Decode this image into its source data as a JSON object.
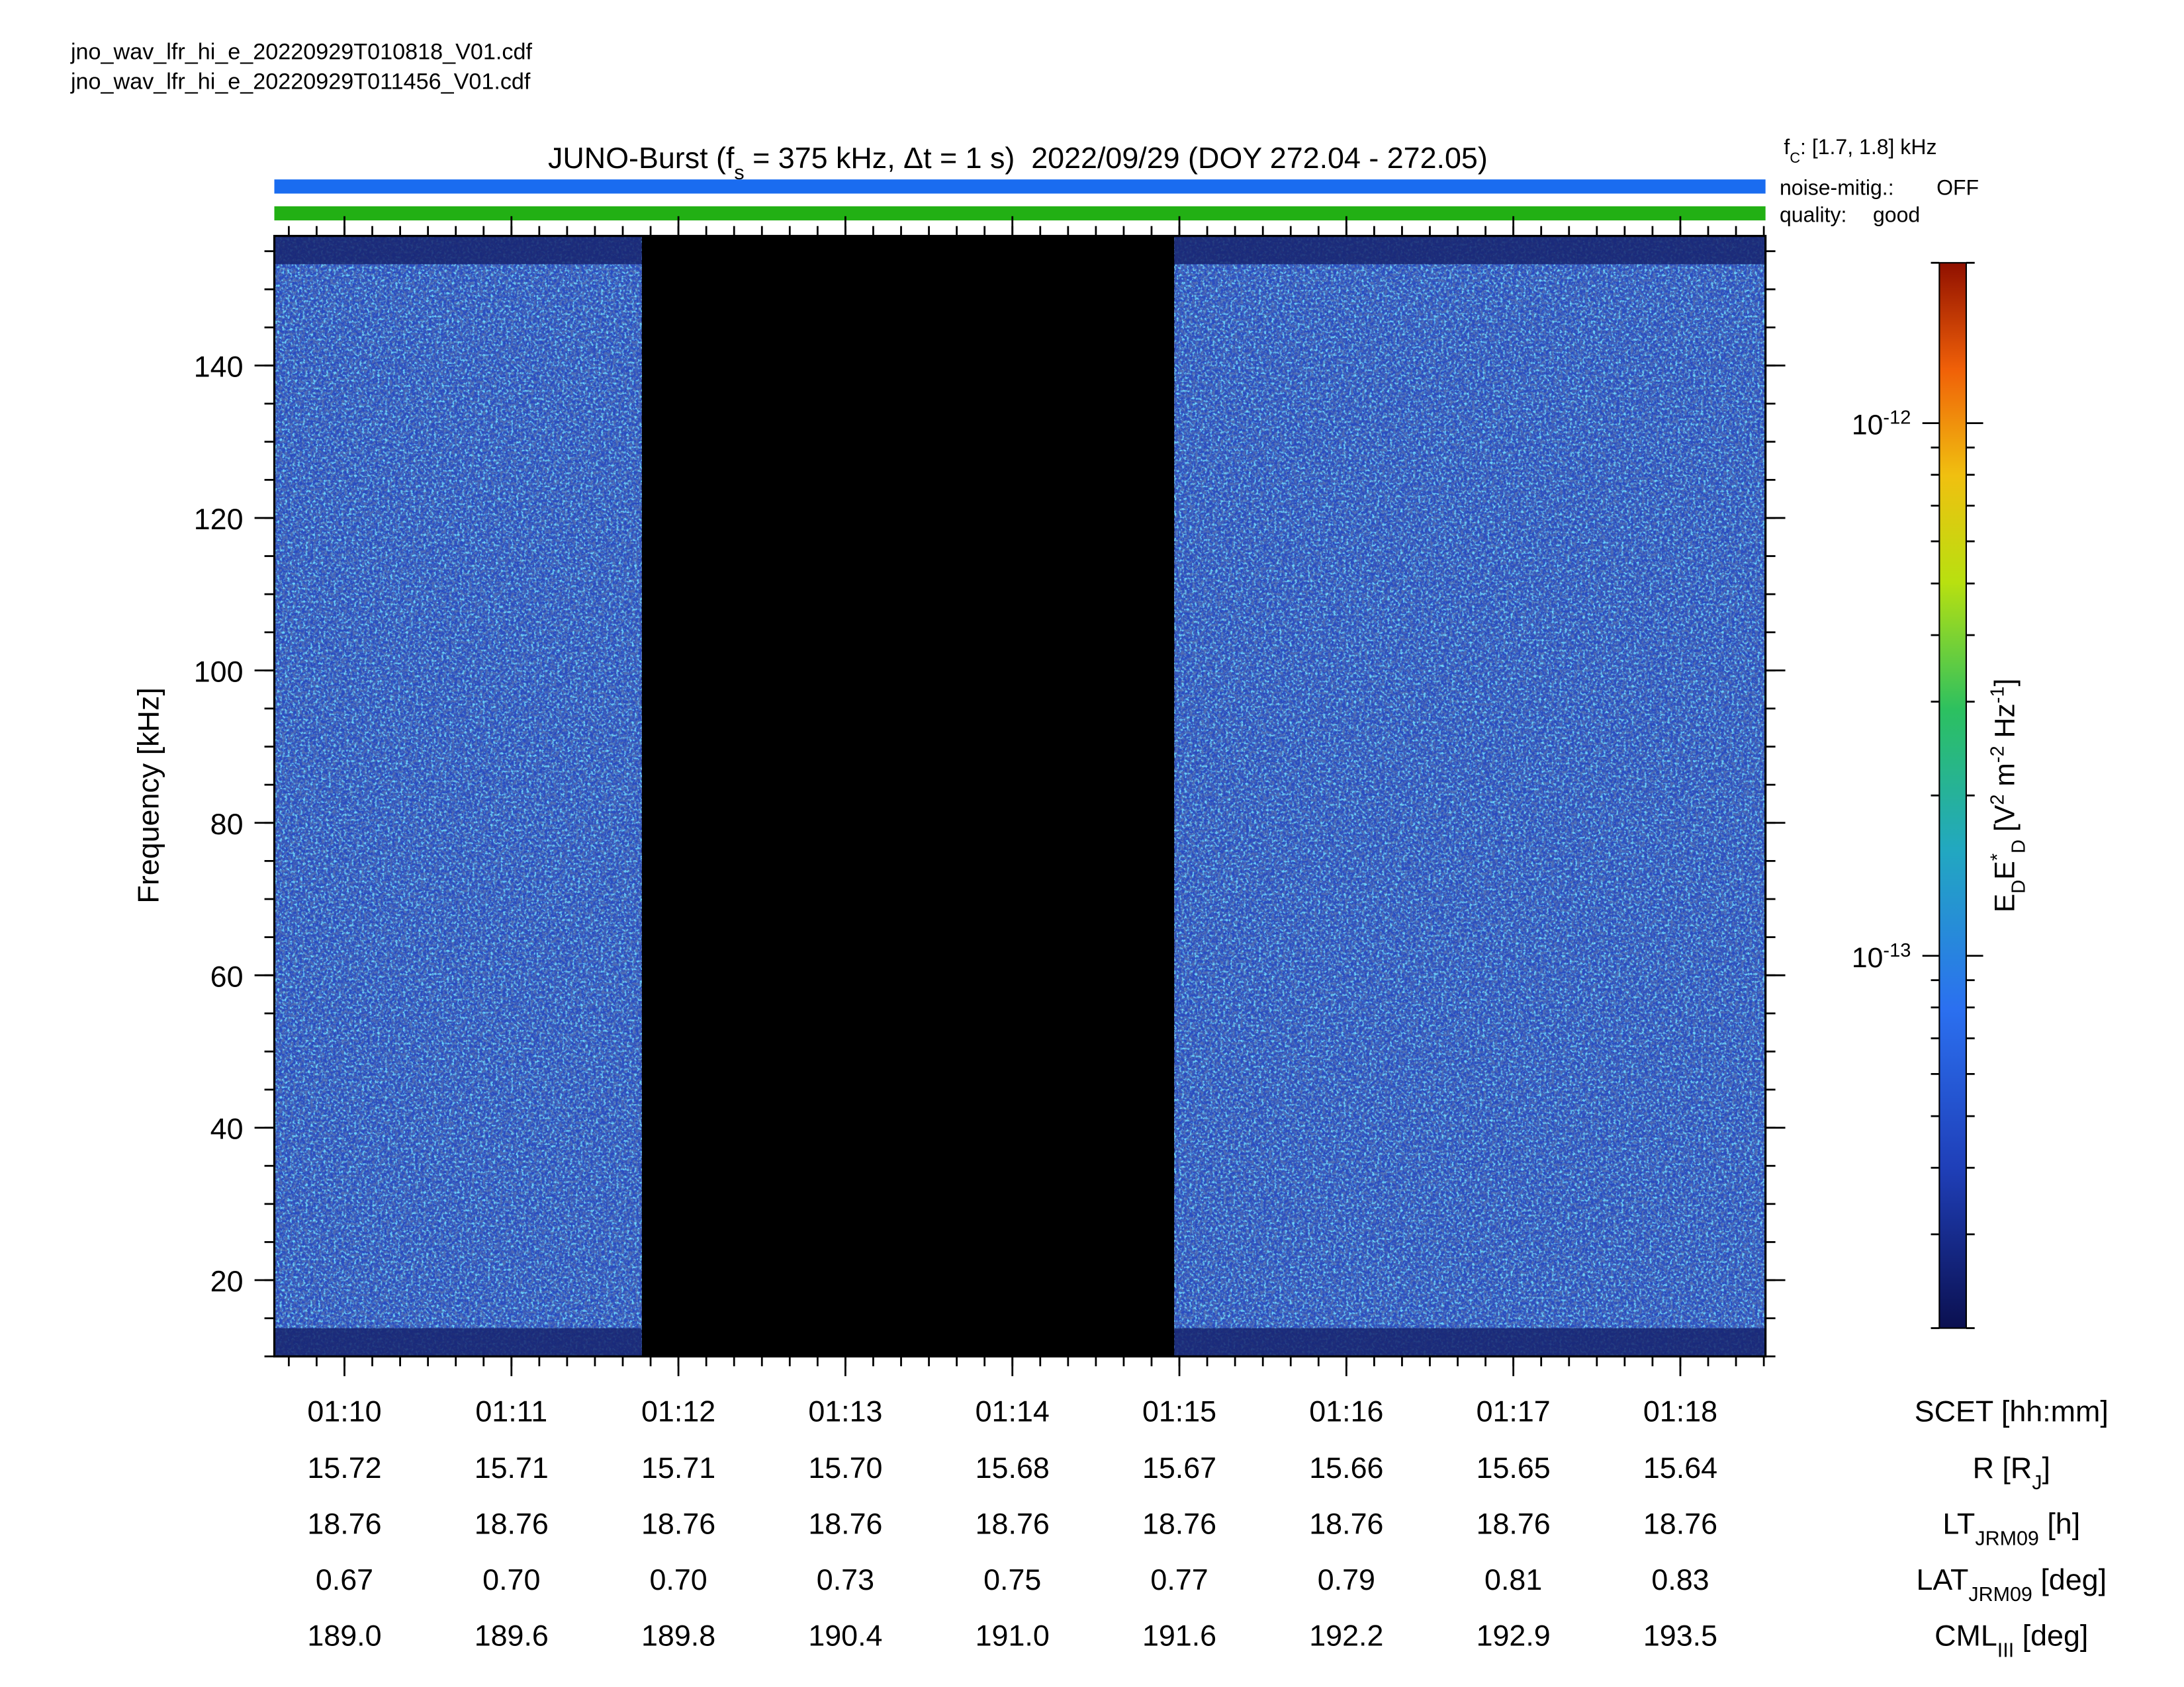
{
  "files": [
    "jno_wav_lfr_hi_e_20220929T010818_V01.cdf",
    "jno_wav_lfr_hi_e_20220929T011456_V01.cdf"
  ],
  "chart_data": {
    "type": "spectrogram",
    "title": [
      {
        "text": "JUNO-Burst (f"
      },
      {
        "text": "s",
        "sub": true
      },
      {
        "text": " = 375 kHz, Δt = 1 s)  2022/09/29 (DOY 272.04 - 272.05)"
      }
    ],
    "status": {
      "fc": [
        {
          "text": "f"
        },
        {
          "text": "C",
          "sub": true
        },
        {
          "text": ": [1.7, 1.8] kHz"
        }
      ],
      "noise_label": "noise-mitig.:",
      "noise_value": "OFF",
      "noise_color": "#1a6cf0",
      "quality_label": "quality:",
      "quality_value": "good",
      "quality_color": "#22b014"
    },
    "ylabel": "Frequency [kHz]",
    "ylim": [
      10,
      157
    ],
    "yticks": [
      20,
      40,
      60,
      80,
      100,
      120,
      140
    ],
    "yminor": 5,
    "xlim": [
      69.58,
      78.51
    ],
    "xticks": [
      {
        "value": 70,
        "label": "01:10"
      },
      {
        "value": 71,
        "label": "01:11"
      },
      {
        "value": 72,
        "label": "01:12"
      },
      {
        "value": 73,
        "label": "01:13"
      },
      {
        "value": 74,
        "label": "01:14"
      },
      {
        "value": 75,
        "label": "01:15"
      },
      {
        "value": 76,
        "label": "01:16"
      },
      {
        "value": 77,
        "label": "01:17"
      },
      {
        "value": 78,
        "label": "01:18"
      }
    ],
    "data_spans": [
      [
        69.58,
        71.78
      ],
      [
        74.97,
        78.51
      ]
    ],
    "gap_color": "#000000",
    "colorbar": {
      "label": [
        {
          "text": "E"
        },
        {
          "text": "D",
          "sub": true
        },
        {
          "text": "E"
        },
        {
          "text": "*",
          "sup": true
        },
        {
          "text": "D",
          "sub": true
        },
        {
          "text": " [V"
        },
        {
          "text": "2",
          "sup": true
        },
        {
          "text": " m"
        },
        {
          "text": "-2",
          "sup": true
        },
        {
          "text": " Hz"
        },
        {
          "text": "-1",
          "sup": true
        },
        {
          "text": "]"
        }
      ],
      "scale": "log",
      "lim": [
        2e-14,
        2e-12
      ],
      "ticks": [
        {
          "value": 1e-12,
          "label": "10",
          "exponent": "-12"
        },
        {
          "value": 1e-13,
          "label": "10",
          "exponent": "-13"
        }
      ]
    },
    "ephemeris": {
      "header": [
        {
          "text": "SCET [hh:mm]"
        }
      ],
      "rows": [
        {
          "label": [
            {
              "text": "R [R"
            },
            {
              "text": "J",
              "sub": true
            },
            {
              "text": "]"
            }
          ],
          "values": [
            "15.72",
            "15.71",
            "15.71",
            "15.70",
            "15.68",
            "15.67",
            "15.66",
            "15.65",
            "15.64"
          ]
        },
        {
          "label": [
            {
              "text": "LT"
            },
            {
              "text": "JRM09",
              "sub": true
            },
            {
              "text": " [h]"
            }
          ],
          "values": [
            "18.76",
            "18.76",
            "18.76",
            "18.76",
            "18.76",
            "18.76",
            "18.76",
            "18.76",
            "18.76"
          ]
        },
        {
          "label": [
            {
              "text": "LAT"
            },
            {
              "text": "JRM09",
              "sub": true
            },
            {
              "text": " [deg]"
            }
          ],
          "values": [
            "0.67",
            "0.70",
            "0.70",
            "0.73",
            "0.75",
            "0.77",
            "0.79",
            "0.81",
            "0.83"
          ]
        },
        {
          "label": [
            {
              "text": "CML"
            },
            {
              "text": "III",
              "sub": true
            },
            {
              "text": " [deg]"
            }
          ],
          "values": [
            "189.0",
            "189.6",
            "189.8",
            "190.4",
            "191.0",
            "191.6",
            "192.2",
            "192.9",
            "193.5"
          ]
        }
      ]
    }
  }
}
